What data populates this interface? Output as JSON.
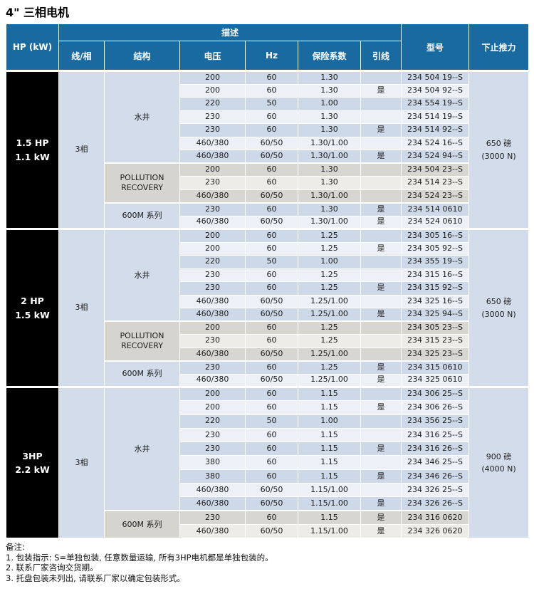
{
  "title": "4\" 三相电机",
  "colors": {
    "header_blue": "#1a6aa2",
    "blue_dark": "#cdd9e8",
    "blue_light": "#edf0f6",
    "grey_dark": "#d8d6d1",
    "grey_light": "#edece8",
    "merged_blue": "#d2dcea",
    "merged_grey": "#d6d4cf",
    "hp_black": "#000000"
  },
  "header": {
    "hp": "HP (kW)",
    "desc": "描述",
    "sub": [
      "线/相",
      "结构",
      "电压",
      "Hz",
      "保险系数",
      "引线"
    ],
    "model": "型号",
    "thrust": "下止推力"
  },
  "columns_note": "voltage, hz, service_factor, lead, model",
  "sections": [
    {
      "hp": [
        "1.5 HP",
        "1.1 kW"
      ],
      "phase": "3相",
      "thrust": [
        "650 磅",
        "(3000 N)"
      ],
      "groups": [
        {
          "structure": "水井",
          "theme": "blue",
          "rows": [
            [
              "200",
              "60",
              "1.30",
              "",
              "234 504 19--S"
            ],
            [
              "200",
              "60",
              "1.30",
              "是",
              "234 504 92--S"
            ],
            [
              "220",
              "50",
              "1.00",
              "",
              "234 554 19--S"
            ],
            [
              "230",
              "60",
              "1.30",
              "",
              "234 514 19--S"
            ],
            [
              "230",
              "60",
              "1.30",
              "是",
              "234 514 92--S"
            ],
            [
              "460/380",
              "60/50",
              "1.30/1.00",
              "",
              "234 524 16--S"
            ],
            [
              "460/380",
              "60/50",
              "1.30/1.00",
              "是",
              "234 524 94--S"
            ]
          ]
        },
        {
          "structure": "POLLUTION RECOVERY",
          "theme": "grey",
          "rows": [
            [
              "200",
              "60",
              "1.30",
              "",
              "234 504 23--S"
            ],
            [
              "230",
              "60",
              "1.30",
              "",
              "234 514 23--S"
            ],
            [
              "460/380",
              "60/50",
              "1.30/1.00",
              "",
              "234 524 23--S"
            ]
          ]
        },
        {
          "structure": "600M 系列",
          "theme": "blue",
          "rows": [
            [
              "230",
              "60",
              "1.30",
              "是",
              "234 514 0610"
            ],
            [
              "460/380",
              "60/50",
              "1.30/1.00",
              "是",
              "234 524 0610"
            ]
          ]
        }
      ]
    },
    {
      "hp": [
        "2 HP",
        "1.5 kW"
      ],
      "phase": "3相",
      "thrust": [
        "650 磅",
        "(3000 N)"
      ],
      "groups": [
        {
          "structure": "水井",
          "theme": "blue",
          "rows": [
            [
              "200",
              "60",
              "1.25",
              "",
              "234 305 16--S"
            ],
            [
              "200",
              "60",
              "1.25",
              "是",
              "234 305 92--S"
            ],
            [
              "220",
              "50",
              "1.00",
              "",
              "234 355 19--S"
            ],
            [
              "230",
              "60",
              "1.25",
              "",
              "234 315 16--S"
            ],
            [
              "230",
              "60",
              "1.25",
              "是",
              "234 315 92--S"
            ],
            [
              "460/380",
              "60/50",
              "1.25/1.00",
              "",
              "234 325 16--S"
            ],
            [
              "460/380",
              "60/50",
              "1.25/1.00",
              "是",
              "234 325 94--S"
            ]
          ]
        },
        {
          "structure": "POLLUTION RECOVERY",
          "theme": "grey",
          "rows": [
            [
              "200",
              "60",
              "1.25",
              "",
              "234 305 23--S"
            ],
            [
              "230",
              "60",
              "1.25",
              "",
              "234 315 23--S"
            ],
            [
              "460/380",
              "60/50",
              "1.25/1.00",
              "",
              "234 325 23--S"
            ]
          ]
        },
        {
          "structure": "600M 系列",
          "theme": "blue",
          "rows": [
            [
              "230",
              "60",
              "1.25",
              "是",
              "234 315 0610"
            ],
            [
              "460/380",
              "60/50",
              "1.25/1.00",
              "是",
              "234 325 0610"
            ]
          ]
        }
      ]
    },
    {
      "hp": [
        "3HP",
        "2.2 kW"
      ],
      "phase": "3相",
      "thrust": [
        "900 磅",
        "(4000 N)"
      ],
      "groups": [
        {
          "structure": "水井",
          "theme": "blue",
          "rows": [
            [
              "200",
              "60",
              "1.15",
              "",
              "234 306 25--S"
            ],
            [
              "200",
              "60",
              "1.15",
              "是",
              "234 306 26--S"
            ],
            [
              "220",
              "50",
              "1.00",
              "",
              "234 356 25--S"
            ],
            [
              "230",
              "60",
              "1.15",
              "",
              "234 316 25--S"
            ],
            [
              "230",
              "60",
              "1.15",
              "是",
              "234 316 26--S"
            ],
            [
              "380",
              "60",
              "1.15",
              "",
              "234 346 25--S"
            ],
            [
              "380",
              "60",
              "1.15",
              "是",
              "234 346 26--S"
            ],
            [
              "460/380",
              "60/50",
              "1.15/1.00",
              "",
              "234 326 25--S"
            ],
            [
              "460/380",
              "60/50",
              "1.15/1.00",
              "是",
              "234 326 26--S"
            ]
          ]
        },
        {
          "structure": "600M 系列",
          "theme": "grey",
          "rows": [
            [
              "230",
              "60",
              "1.15",
              "是",
              "234 316 0620"
            ],
            [
              "460/380",
              "60/50",
              "1.15/1.00",
              "是",
              "234 326 0620"
            ]
          ]
        }
      ]
    }
  ],
  "notes": {
    "label": "备注:",
    "items": [
      "1. 包装指示: S=单独包装, 任意数量运输, 所有3HP电机都是单独包装的。",
      "2. 联系厂家咨询交货期。",
      "3. 托盘包装未列出, 请联系厂家以确定包装形式。"
    ]
  }
}
